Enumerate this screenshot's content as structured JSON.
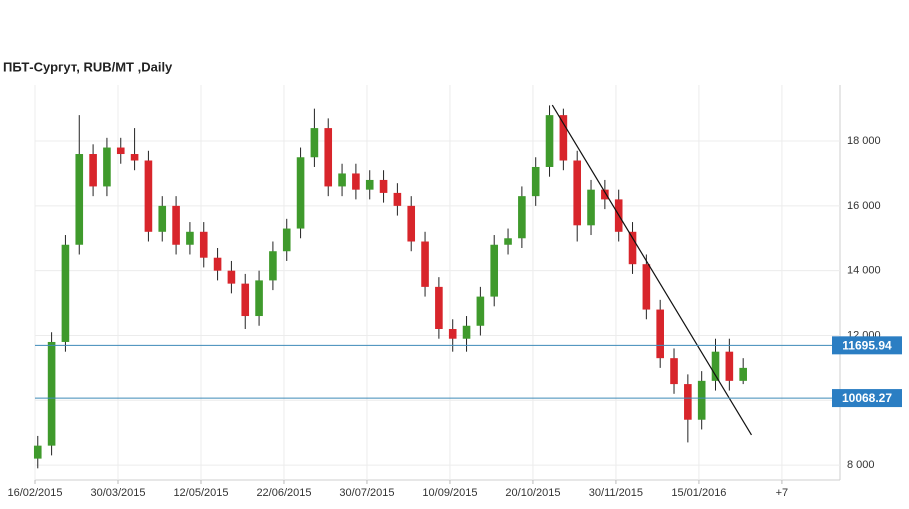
{
  "chart_data": {
    "type": "candlestick",
    "title": "ПБТ-Сургут,  RUB/MT ,Daily",
    "xlim": [
      0,
      291
    ],
    "xticks": [
      {
        "value": 0,
        "label": "16/02/2015"
      },
      {
        "value": 30,
        "label": "30/03/2015"
      },
      {
        "value": 60,
        "label": "12/05/2015"
      },
      {
        "value": 90,
        "label": "22/06/2015"
      },
      {
        "value": 120,
        "label": "30/07/2015"
      },
      {
        "value": 150,
        "label": "10/09/2015"
      },
      {
        "value": 180,
        "label": "20/10/2015"
      },
      {
        "value": 210,
        "label": "30/11/2015"
      },
      {
        "value": 240,
        "label": "15/01/2016"
      },
      {
        "value": 270,
        "label": "+7"
      }
    ],
    "ylim": [
      7540,
      19730
    ],
    "yticks": [
      {
        "value": 8000,
        "label": "8 000"
      },
      {
        "value": 10000,
        "label": "10 000"
      },
      {
        "value": 12000,
        "label": "12 000"
      },
      {
        "value": 14000,
        "label": "14 000"
      },
      {
        "value": 16000,
        "label": "16 000"
      },
      {
        "value": 18000,
        "label": "18 000"
      }
    ],
    "grid": true,
    "up_color": "#3f9a2c",
    "down_color": "#d8252b",
    "candles": {
      "x": [
        1,
        6,
        11,
        16,
        21,
        26,
        31,
        36,
        41,
        46,
        51,
        56,
        61,
        66,
        71,
        76,
        81,
        86,
        91,
        96,
        101,
        106,
        111,
        116,
        121,
        126,
        131,
        136,
        141,
        146,
        151,
        156,
        161,
        166,
        171,
        176,
        181,
        186,
        191,
        196,
        201,
        206,
        211,
        216,
        221,
        226,
        231,
        236,
        241,
        246,
        251,
        256
      ],
      "open": [
        8200,
        8600,
        11800,
        14800,
        17600,
        16600,
        17800,
        17600,
        17400,
        15200,
        16000,
        14800,
        15200,
        14400,
        14000,
        13600,
        12600,
        13700,
        14600,
        15300,
        17500,
        18400,
        16600,
        17000,
        16500,
        16800,
        16400,
        16000,
        14900,
        13500,
        12200,
        11900,
        12300,
        13200,
        14800,
        15000,
        16300,
        17200,
        18800,
        17400,
        15400,
        16500,
        16200,
        15200,
        14200,
        12800,
        11300,
        10500,
        9400,
        10600,
        11500,
        10600
      ],
      "high": [
        8900,
        12100,
        15100,
        18800,
        17900,
        18100,
        18100,
        18400,
        17700,
        16300,
        16300,
        15500,
        15500,
        14700,
        14300,
        13900,
        14000,
        14900,
        15600,
        17800,
        19000,
        18700,
        17300,
        17300,
        17100,
        17100,
        16700,
        16300,
        15200,
        13800,
        12500,
        12600,
        13500,
        15100,
        15300,
        16600,
        17500,
        19100,
        19000,
        17700,
        16800,
        16800,
        16500,
        15500,
        14500,
        13100,
        11600,
        10800,
        10900,
        11900,
        11900,
        11300
      ],
      "low": [
        7900,
        8300,
        11500,
        14500,
        16300,
        16300,
        17300,
        17100,
        14900,
        14900,
        14500,
        14500,
        14100,
        13700,
        13300,
        12200,
        12300,
        13400,
        14300,
        15000,
        17200,
        16300,
        16300,
        16200,
        16200,
        16100,
        15700,
        14600,
        13200,
        11900,
        11500,
        11500,
        12000,
        12900,
        14500,
        14700,
        16000,
        16900,
        17100,
        14900,
        15100,
        15900,
        14900,
        13900,
        12500,
        11000,
        10200,
        8700,
        9100,
        10300,
        10300,
        10500
      ],
      "close": [
        8600,
        11800,
        14800,
        17600,
        16600,
        17800,
        17600,
        17400,
        15200,
        16000,
        14800,
        15200,
        14400,
        14000,
        13600,
        12600,
        13700,
        14600,
        15300,
        17500,
        18400,
        16600,
        17000,
        16500,
        16800,
        16400,
        16000,
        14900,
        13500,
        12200,
        11900,
        12300,
        13200,
        14800,
        15000,
        16300,
        17200,
        18800,
        17400,
        15400,
        16500,
        16200,
        15200,
        14200,
        12800,
        11300,
        10500,
        9400,
        10600,
        11500,
        10600,
        11000
      ]
    },
    "hlines": [
      {
        "value": 11695.94,
        "color": "#3d8ab8"
      },
      {
        "value": 10068.27,
        "color": "#3d8ab8"
      }
    ],
    "trendline": {
      "x": [
        187,
        259
      ],
      "y": [
        19110,
        8930
      ],
      "color": "#111111"
    }
  }
}
